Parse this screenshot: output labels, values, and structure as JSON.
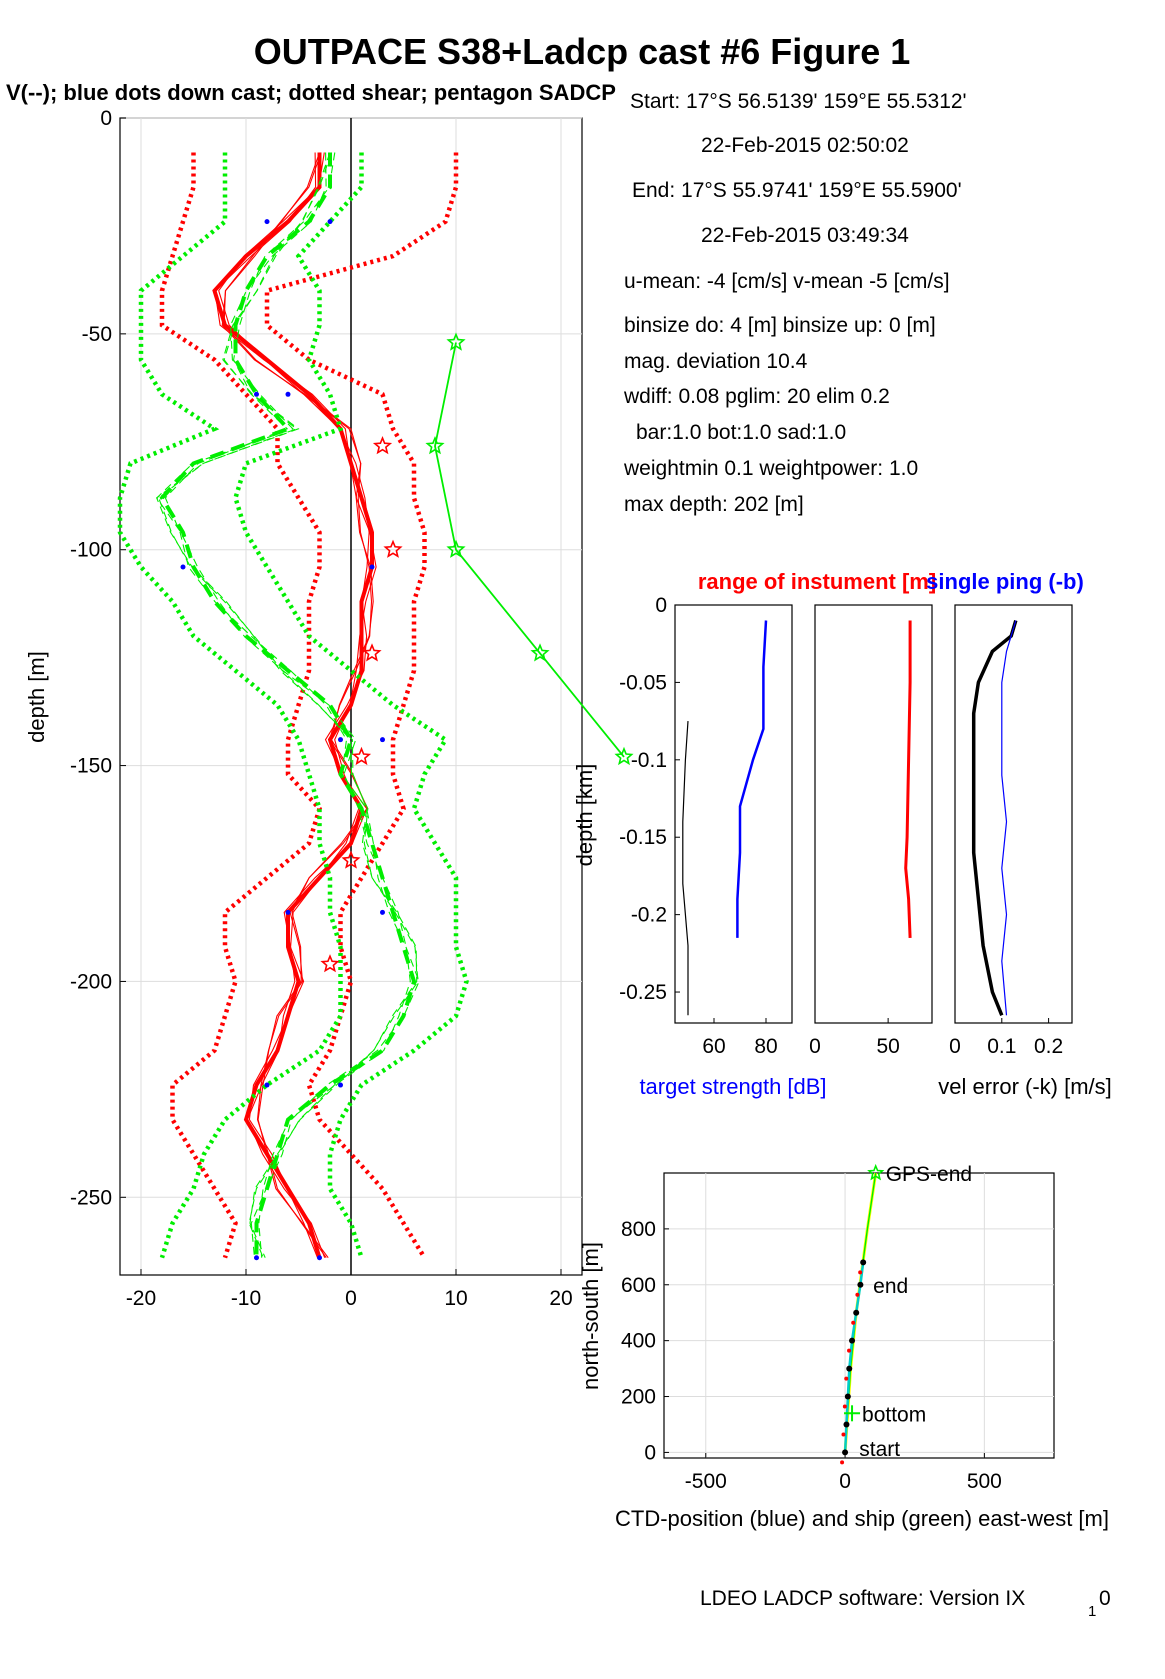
{
  "title": "OUTPACE S38+Ladcp cast #6  Figure 1",
  "subtitle": "V(--); blue dots down cast; dotted shear; pentagon SADCP",
  "info_lines": [
    "Start:  17°S 56.5139'      159°E 55.5312'",
    "22-Feb-2015 02:50:02",
    "End:   17°S 55.9741'      159°E 55.5900'",
    "22-Feb-2015 03:49:34",
    "u-mean:  -4 [cm/s]    v-mean  -5 [cm/s]",
    "binsize do: 4 [m]  binsize up:  0 [m]",
    "mag. deviation 10.4",
    "wdiff: 0.08  pglim: 20  elim 0.2",
    "bar:1.0 bot:1.0 sad:1.0",
    "weightmin 0.1  weightpower: 1.0",
    "max depth: 202 [m]"
  ],
  "footer": "LDEO LADCP software: Version IX",
  "footer_sub": "1",
  "footer_tail": "0",
  "colors": {
    "u": "#ff0000",
    "v": "#00ee00",
    "dots": "#0000ff",
    "blue": "#0000ff",
    "black": "#000000",
    "yellow": "#ffff00",
    "cyan": "#00cccc"
  },
  "chart_data": [
    {
      "id": "velocity_profile",
      "type": "line",
      "ylabel": "depth [m]",
      "xlabel": "",
      "xlim": [
        -22,
        22
      ],
      "ylim": [
        -268,
        0
      ],
      "xticks": [
        -20,
        -10,
        0,
        10,
        20
      ],
      "yticks": [
        0,
        -50,
        -100,
        -150,
        -200,
        -250
      ],
      "grid": true,
      "depth": [
        -8,
        -16,
        -24,
        -32,
        -40,
        -48,
        -56,
        -64,
        -72,
        -80,
        -88,
        -96,
        -104,
        -112,
        -120,
        -128,
        -136,
        -144,
        -152,
        -160,
        -168,
        -176,
        -184,
        -192,
        -200,
        -208,
        -216,
        -224,
        -232,
        -240,
        -248,
        -256,
        -264
      ],
      "series": [
        {
          "component": "u",
          "style": "mean",
          "values": [
            -3,
            -3,
            -6,
            -10,
            -13,
            -12,
            -8,
            -4,
            -1,
            0,
            1,
            2,
            2,
            1,
            1,
            1,
            0,
            -2,
            -1,
            1,
            0,
            -3,
            -6,
            -6,
            -5,
            -6,
            -7,
            -9,
            -10,
            -8,
            -6,
            -4,
            -3
          ]
        },
        {
          "component": "u",
          "style": "shear_low",
          "values": [
            -15,
            -15,
            -16,
            -17,
            -18,
            -18,
            -13,
            -10,
            -7,
            -7,
            -5,
            -3,
            -3,
            -4,
            -4,
            -4,
            -5,
            -6,
            -6,
            -3,
            -4,
            -8,
            -12,
            -12,
            -11,
            -12,
            -13,
            -17,
            -17,
            -15,
            -13,
            -11,
            -12
          ]
        },
        {
          "component": "u",
          "style": "shear_high",
          "values": [
            10,
            10,
            9,
            4,
            -8,
            -8,
            -4,
            3,
            4,
            6,
            6,
            7,
            7,
            6,
            6,
            6,
            5,
            4,
            4,
            5,
            3,
            1,
            -1,
            -1,
            0,
            -1,
            -2,
            -4,
            -3,
            0,
            3,
            5,
            7
          ]
        },
        {
          "component": "v",
          "style": "mean",
          "values": [
            -2,
            -2,
            -4,
            -8,
            -10,
            -11,
            -11,
            -9,
            -6,
            -15,
            -18,
            -16,
            -15,
            -13,
            -10,
            -6,
            -2,
            0,
            -1,
            1,
            2,
            3,
            4,
            5,
            6,
            5,
            3,
            -2,
            -6,
            -7,
            -8,
            -9,
            -9
          ]
        },
        {
          "component": "v",
          "style": "shear_low",
          "values": [
            -12,
            -12,
            -12,
            -16,
            -20,
            -20,
            -20,
            -18,
            -13,
            -21,
            -22,
            -22,
            -20,
            -17,
            -15,
            -11,
            -7,
            -5,
            -4,
            -3,
            -3,
            -2,
            -2,
            -1,
            -1,
            -1,
            -3,
            -8,
            -12,
            -14,
            -15,
            -17,
            -18
          ]
        },
        {
          "component": "v",
          "style": "shear_high",
          "values": [
            1,
            1,
            -2,
            -5,
            -3,
            -3,
            -4,
            -2,
            -1,
            -10,
            -11,
            -10,
            -8,
            -6,
            -4,
            0,
            4,
            9,
            7,
            6,
            8,
            10,
            10,
            10,
            11,
            10,
            6,
            1,
            -1,
            -2,
            -2,
            0,
            1
          ]
        }
      ],
      "sadcp_u": {
        "depth": [
          -76,
          -100,
          -124,
          -148,
          -172,
          -196
        ],
        "values": [
          3,
          4,
          2,
          1,
          0,
          -2
        ]
      },
      "sadcp_v": {
        "depth": [
          -52,
          -76,
          -100,
          -124,
          -148
        ],
        "values": [
          10,
          8,
          10,
          18,
          26
        ]
      },
      "downcast_dots": [
        {
          "x": -8,
          "y": -24
        },
        {
          "x": -2,
          "y": -24
        },
        {
          "x": -9,
          "y": -64
        },
        {
          "x": -6,
          "y": -64
        },
        {
          "x": -16,
          "y": -104
        },
        {
          "x": 2,
          "y": -104
        },
        {
          "x": -1,
          "y": -144
        },
        {
          "x": 3,
          "y": -144
        },
        {
          "x": -6,
          "y": -184
        },
        {
          "x": 3,
          "y": -184
        },
        {
          "x": -8,
          "y": -224
        },
        {
          "x": -1,
          "y": -224
        },
        {
          "x": -9,
          "y": -264
        },
        {
          "x": -3,
          "y": -264
        }
      ]
    },
    {
      "id": "target_strength",
      "type": "line",
      "title": "range of instument [m]",
      "ylabel": "depth [km]",
      "xlabel": "target strength [dB]",
      "xlim": [
        45,
        90
      ],
      "ylim": [
        -0.27,
        0
      ],
      "xticks": [
        60,
        80
      ],
      "yticks": [
        0,
        -0.05,
        -0.1,
        -0.15,
        -0.2,
        -0.25
      ],
      "series": [
        {
          "name": "blue",
          "depth": [
            -0.01,
            -0.04,
            -0.07,
            -0.08,
            -0.1,
            -0.13,
            -0.16,
            -0.19,
            -0.215
          ],
          "values": [
            80,
            79,
            79,
            79,
            75,
            70,
            70,
            69,
            69
          ]
        },
        {
          "name": "black",
          "depth": [
            -0.075,
            -0.1,
            -0.14,
            -0.18,
            -0.2,
            -0.22,
            -0.25,
            -0.265
          ],
          "values": [
            50,
            49,
            48,
            48,
            49,
            50,
            50,
            50
          ]
        }
      ]
    },
    {
      "id": "range",
      "type": "line",
      "xlim": [
        0,
        80
      ],
      "ylim": [
        -0.27,
        0
      ],
      "xticks": [
        0,
        50
      ],
      "series": [
        {
          "name": "range",
          "depth": [
            -0.01,
            -0.05,
            -0.1,
            -0.15,
            -0.17,
            -0.19,
            -0.215
          ],
          "values": [
            65,
            65,
            64,
            63,
            62,
            64,
            65
          ]
        }
      ]
    },
    {
      "id": "vel_error",
      "type": "line",
      "title": "single ping (-b)",
      "xlabel": "vel error (-k) [m/s]",
      "xlim": [
        0,
        0.25
      ],
      "ylim": [
        -0.27,
        0
      ],
      "xticks": [
        0,
        0.1,
        0.2
      ],
      "xticklabels": [
        "0",
        "0.1",
        "0.2"
      ],
      "series": [
        {
          "name": "black",
          "depth": [
            -0.01,
            -0.02,
            -0.03,
            -0.05,
            -0.07,
            -0.1,
            -0.13,
            -0.16,
            -0.19,
            -0.22,
            -0.25,
            -0.265
          ],
          "values": [
            0.13,
            0.12,
            0.08,
            0.05,
            0.04,
            0.04,
            0.04,
            0.04,
            0.05,
            0.06,
            0.08,
            0.1
          ]
        },
        {
          "name": "blue",
          "depth": [
            -0.01,
            -0.03,
            -0.05,
            -0.08,
            -0.11,
            -0.14,
            -0.17,
            -0.2,
            -0.23,
            -0.265
          ],
          "values": [
            0.13,
            0.11,
            0.1,
            0.1,
            0.1,
            0.11,
            0.1,
            0.11,
            0.1,
            0.11
          ]
        }
      ]
    },
    {
      "id": "position",
      "type": "line",
      "xlabel": "CTD-position (blue) and ship (green) east-west [m]",
      "ylabel": "north-south [m]",
      "xlim": [
        -650,
        750
      ],
      "ylim": [
        -20,
        1000
      ],
      "xticks": [
        -500,
        0,
        500
      ],
      "yticks": [
        0,
        200,
        400,
        600,
        800
      ],
      "grid": true,
      "ship_track": {
        "x": [
          0,
          10,
          20,
          40,
          60,
          80,
          110
        ],
        "y": [
          0,
          150,
          300,
          500,
          650,
          800,
          1000
        ]
      },
      "ctd_track": {
        "x": [
          0,
          5,
          10,
          15,
          25,
          40,
          55,
          65
        ],
        "y": [
          0,
          100,
          200,
          300,
          400,
          500,
          600,
          680
        ]
      },
      "markers": [
        {
          "label": "GPS-end",
          "x": 110,
          "y": 1000
        },
        {
          "label": "end",
          "x": 65,
          "y": 600
        },
        {
          "label": "bottom",
          "x": 25,
          "y": 140
        },
        {
          "label": "start",
          "x": 15,
          "y": 15
        }
      ]
    }
  ]
}
